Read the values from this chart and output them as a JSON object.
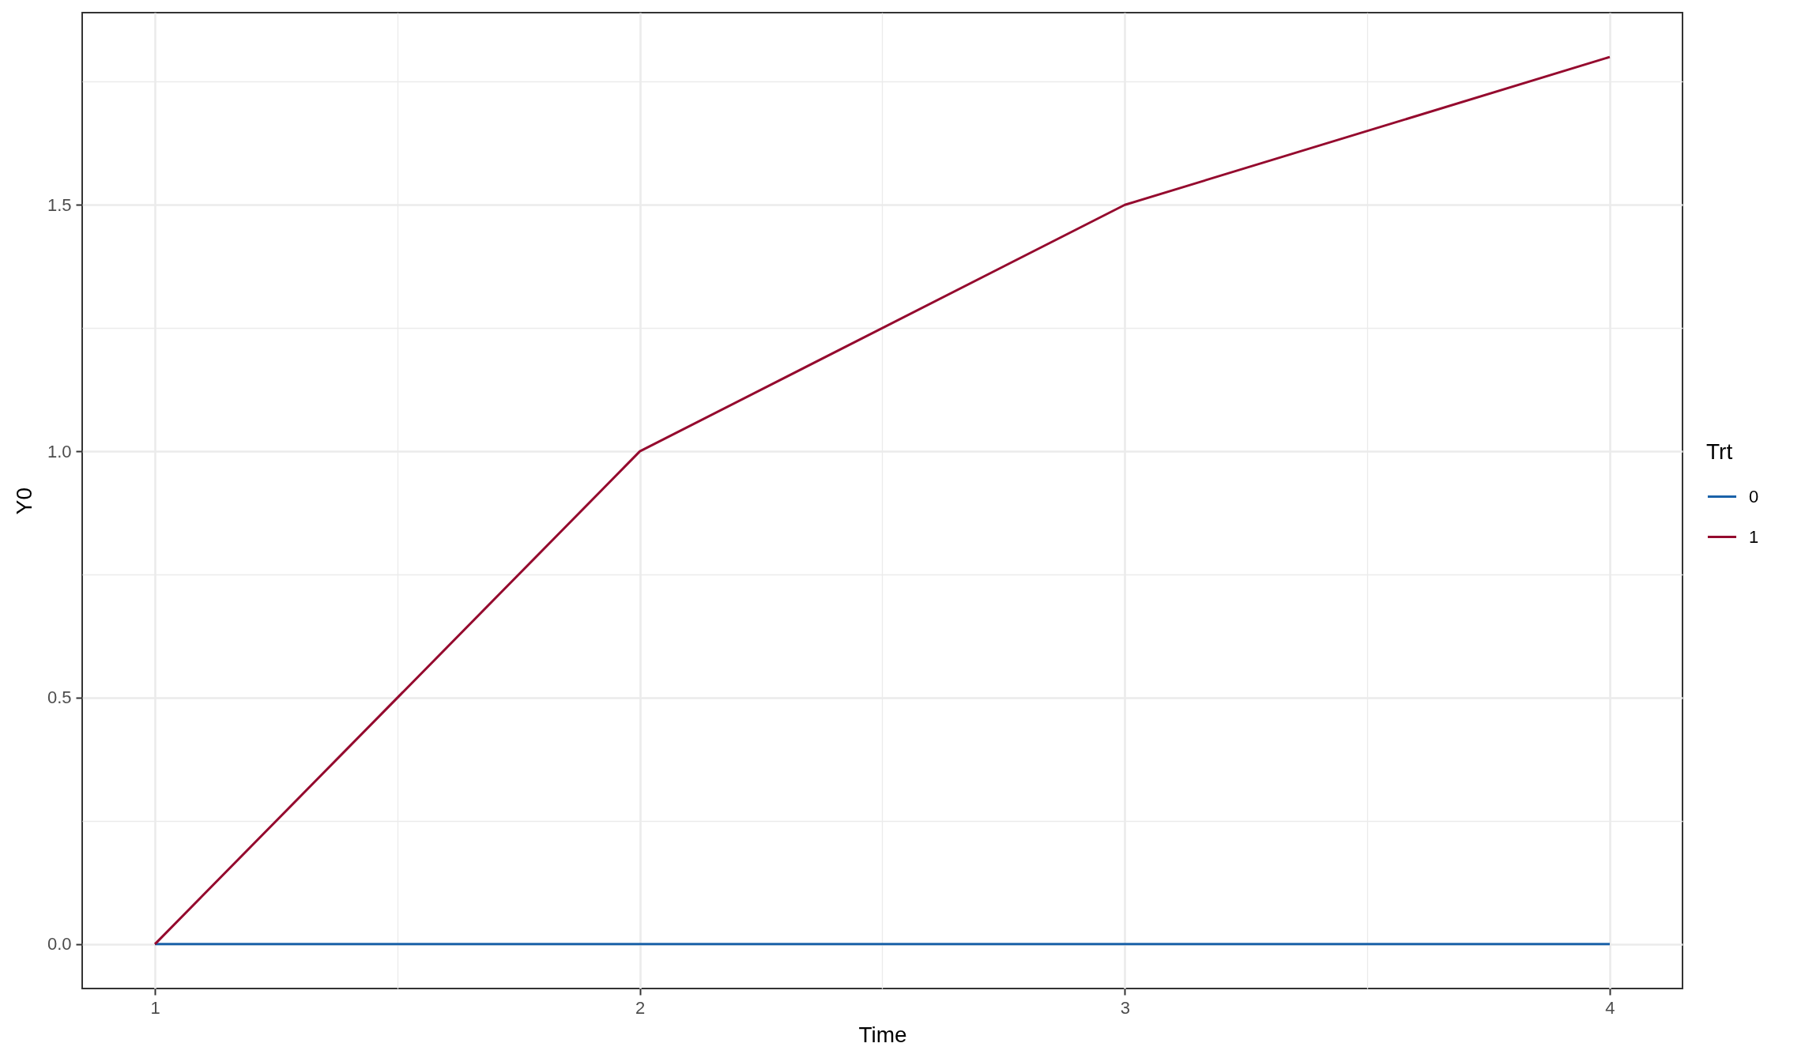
{
  "chart_data": {
    "type": "line",
    "xlabel": "Time",
    "ylabel": "Y0",
    "legend_title": "Trt",
    "x": [
      1,
      2,
      3,
      4
    ],
    "series": [
      {
        "name": "0",
        "color": "#1a62a9",
        "values": [
          0,
          0,
          0,
          0
        ]
      },
      {
        "name": "1",
        "color": "#950a2e",
        "values": [
          0,
          1.0,
          1.5,
          1.8
        ]
      }
    ],
    "xlim": [
      0.85,
      4.15
    ],
    "xticks": [
      1,
      2,
      3,
      4
    ],
    "ylim": [
      -0.09,
      1.89
    ],
    "yticks": [
      {
        "value": 0,
        "label": "0.0"
      },
      {
        "value": 0.5,
        "label": "0.5"
      },
      {
        "value": 1,
        "label": "1.0"
      },
      {
        "value": 1.5,
        "label": "1.5"
      }
    ],
    "grid": true,
    "legend": "right",
    "line_style": "solid"
  }
}
